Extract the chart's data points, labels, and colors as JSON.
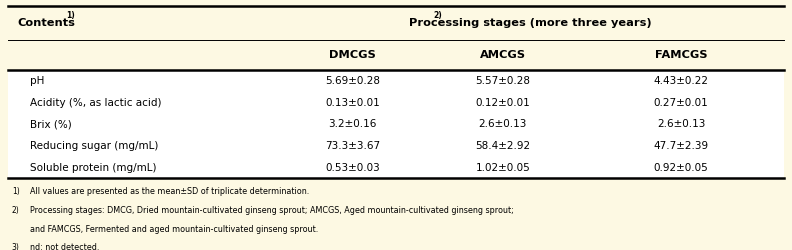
{
  "background_color": "#fdf9e3",
  "table_bg": "#ffffff",
  "col1_header": "Contents",
  "col1_super": "1)",
  "proc_header": "Processing stages",
  "proc_super": "2)",
  "proc_suffix": " (more three years)",
  "subheaders": [
    "DMCGS",
    "AMCGS",
    "FAMCGS"
  ],
  "rows": [
    [
      "pH",
      "5.69±0.28",
      "5.57±0.28",
      "4.43±0.22"
    ],
    [
      "Acidity (%, as lactic acid)",
      "0.13±0.01",
      "0.12±0.01",
      "0.27±0.01"
    ],
    [
      "Brix (%)",
      "3.2±0.16",
      "2.6±0.13",
      "2.6±0.13"
    ],
    [
      "Reducing sugar (mg/mL)",
      "73.3±3.67",
      "58.4±2.92",
      "47.7±2.39"
    ],
    [
      "Soluble protein (mg/mL)",
      "0.53±0.03",
      "1.02±0.05",
      "0.92±0.05"
    ]
  ],
  "footnote1_sup": "1)",
  "footnote1_text": "All values are presented as the mean±SD of triplicate determination.",
  "footnote2_sup": "2)",
  "footnote2_text": "Processing stages: DMCG, Dried mountain-cultivated ginseng sprout; AMCGS, Aged mountain-cultivated ginseng sprout;",
  "footnote2_cont": "and FAMCGS, Fermented and aged mountain-cultivated ginseng sprout.",
  "footnote3_sup": "3)",
  "footnote3_text": "nd: not detected."
}
